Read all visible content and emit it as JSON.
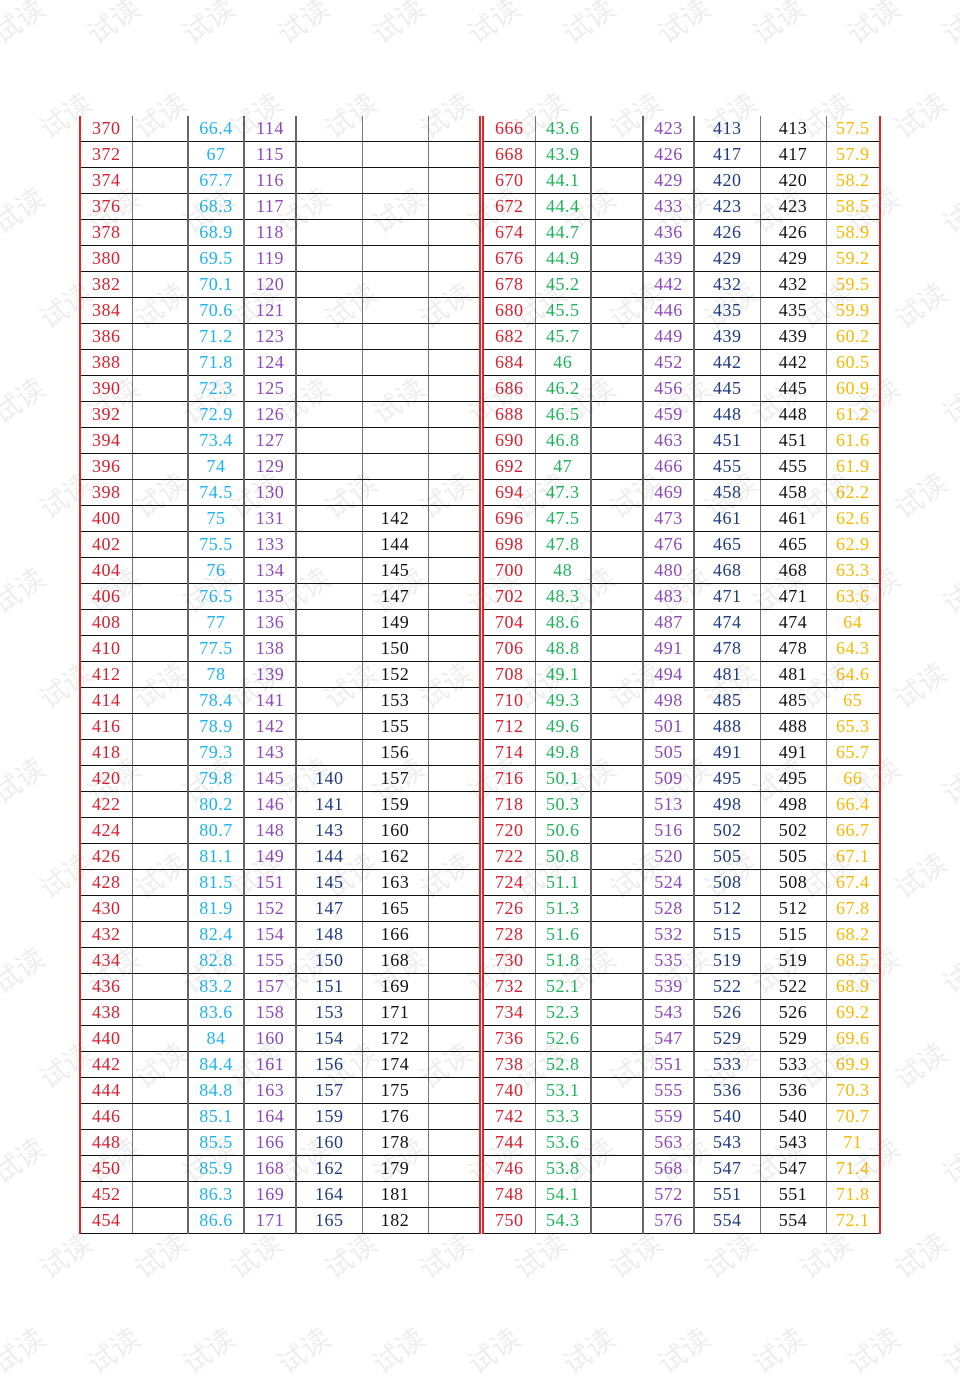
{
  "watermark": "试读",
  "colors": {
    "red": "#d42030",
    "cyan": "#1cb4f0",
    "purple": "#8e48b8",
    "navy": "#1f3b7d",
    "black": "#111111",
    "green": "#1db45a",
    "yellow": "#f7b900"
  },
  "left": {
    "columns": [
      {
        "color": "red",
        "values": [
          "370",
          "372",
          "374",
          "376",
          "378",
          "380",
          "382",
          "384",
          "386",
          "388",
          "390",
          "392",
          "394",
          "396",
          "398",
          "400",
          "402",
          "404",
          "406",
          "408",
          "410",
          "412",
          "414",
          "416",
          "418",
          "420",
          "422",
          "424",
          "426",
          "428",
          "430",
          "432",
          "434",
          "436",
          "438",
          "440",
          "442",
          "444",
          "446",
          "448",
          "450",
          "452",
          "454"
        ]
      },
      {
        "color": "black",
        "values": []
      },
      {
        "color": "cyan",
        "values": [
          "66.4",
          "67",
          "67.7",
          "68.3",
          "68.9",
          "69.5",
          "70.1",
          "70.6",
          "71.2",
          "71.8",
          "72.3",
          "72.9",
          "73.4",
          "74",
          "74.5",
          "75",
          "75.5",
          "76",
          "76.5",
          "77",
          "77.5",
          "78",
          "78.4",
          "78.9",
          "79.3",
          "79.8",
          "80.2",
          "80.7",
          "81.1",
          "81.5",
          "81.9",
          "82.4",
          "82.8",
          "83.2",
          "83.6",
          "84",
          "84.4",
          "84.8",
          "85.1",
          "85.5",
          "85.9",
          "86.3",
          "86.6"
        ]
      },
      {
        "color": "purple",
        "values": [
          "114",
          "115",
          "116",
          "117",
          "118",
          "119",
          "120",
          "121",
          "123",
          "124",
          "125",
          "126",
          "127",
          "129",
          "130",
          "131",
          "133",
          "134",
          "135",
          "136",
          "138",
          "139",
          "141",
          "142",
          "143",
          "145",
          "146",
          "148",
          "149",
          "151",
          "152",
          "154",
          "155",
          "157",
          "158",
          "160",
          "161",
          "163",
          "164",
          "166",
          "168",
          "169",
          "171"
        ]
      },
      {
        "color": "navy",
        "values": [
          "",
          "",
          "",
          "",
          "",
          "",
          "",
          "",
          "",
          "",
          "",
          "",
          "",
          "",
          "",
          "",
          "",
          "",
          "",
          "",
          "",
          "",
          "",
          "",
          "",
          "140",
          "141",
          "143",
          "144",
          "145",
          "147",
          "148",
          "150",
          "151",
          "153",
          "154",
          "156",
          "157",
          "159",
          "160",
          "162",
          "164",
          "165"
        ]
      },
      {
        "color": "black",
        "values": [
          "",
          "",
          "",
          "",
          "",
          "",
          "",
          "",
          "",
          "",
          "",
          "",
          "",
          "",
          "",
          "142",
          "144",
          "145",
          "147",
          "149",
          "150",
          "152",
          "153",
          "155",
          "156",
          "157",
          "159",
          "160",
          "162",
          "163",
          "165",
          "166",
          "168",
          "169",
          "171",
          "172",
          "174",
          "175",
          "176",
          "178",
          "179",
          "181",
          "182"
        ]
      },
      {
        "color": "black",
        "values": []
      }
    ]
  },
  "right": {
    "columns": [
      {
        "color": "red",
        "values": [
          "666",
          "668",
          "670",
          "672",
          "674",
          "676",
          "678",
          "680",
          "682",
          "684",
          "686",
          "688",
          "690",
          "692",
          "694",
          "696",
          "698",
          "700",
          "702",
          "704",
          "706",
          "708",
          "710",
          "712",
          "714",
          "716",
          "718",
          "720",
          "722",
          "724",
          "726",
          "728",
          "730",
          "732",
          "734",
          "736",
          "738",
          "740",
          "742",
          "744",
          "746",
          "748",
          "750"
        ]
      },
      {
        "color": "green",
        "values": [
          "43.6",
          "43.9",
          "44.1",
          "44.4",
          "44.7",
          "44.9",
          "45.2",
          "45.5",
          "45.7",
          "46",
          "46.2",
          "46.5",
          "46.8",
          "47",
          "47.3",
          "47.5",
          "47.8",
          "48",
          "48.3",
          "48.6",
          "48.8",
          "49.1",
          "49.3",
          "49.6",
          "49.8",
          "50.1",
          "50.3",
          "50.6",
          "50.8",
          "51.1",
          "51.3",
          "51.6",
          "51.8",
          "52.1",
          "52.3",
          "52.6",
          "52.8",
          "53.1",
          "53.3",
          "53.6",
          "53.8",
          "54.1",
          "54.3"
        ]
      },
      {
        "color": "black",
        "values": []
      },
      {
        "color": "purple",
        "values": [
          "423",
          "426",
          "429",
          "433",
          "436",
          "439",
          "442",
          "446",
          "449",
          "452",
          "456",
          "459",
          "463",
          "466",
          "469",
          "473",
          "476",
          "480",
          "483",
          "487",
          "491",
          "494",
          "498",
          "501",
          "505",
          "509",
          "513",
          "516",
          "520",
          "524",
          "528",
          "532",
          "535",
          "539",
          "543",
          "547",
          "551",
          "555",
          "559",
          "563",
          "568",
          "572",
          "576"
        ]
      },
      {
        "color": "navy",
        "values": [
          "413",
          "417",
          "420",
          "423",
          "426",
          "429",
          "432",
          "435",
          "439",
          "442",
          "445",
          "448",
          "451",
          "455",
          "458",
          "461",
          "465",
          "468",
          "471",
          "474",
          "478",
          "481",
          "485",
          "488",
          "491",
          "495",
          "498",
          "502",
          "505",
          "508",
          "512",
          "515",
          "519",
          "522",
          "526",
          "529",
          "533",
          "536",
          "540",
          "543",
          "547",
          "551",
          "554"
        ]
      },
      {
        "color": "black",
        "values": [
          "413",
          "417",
          "420",
          "423",
          "426",
          "429",
          "432",
          "435",
          "439",
          "442",
          "445",
          "448",
          "451",
          "455",
          "458",
          "461",
          "465",
          "468",
          "471",
          "474",
          "478",
          "481",
          "485",
          "488",
          "491",
          "495",
          "498",
          "502",
          "505",
          "508",
          "512",
          "515",
          "519",
          "522",
          "526",
          "529",
          "533",
          "536",
          "540",
          "543",
          "547",
          "551",
          "554"
        ]
      },
      {
        "color": "yellow",
        "values": [
          "57.5",
          "57.9",
          "58.2",
          "58.5",
          "58.9",
          "59.2",
          "59.5",
          "59.9",
          "60.2",
          "60.5",
          "60.9",
          "61.2",
          "61.6",
          "61.9",
          "62.2",
          "62.6",
          "62.9",
          "63.3",
          "63.6",
          "64",
          "64.3",
          "64.6",
          "65",
          "65.3",
          "65.7",
          "66",
          "66.4",
          "66.7",
          "67.1",
          "67.4",
          "67.8",
          "68.2",
          "68.5",
          "68.9",
          "69.2",
          "69.6",
          "69.9",
          "70.3",
          "70.7",
          "71",
          "71.4",
          "71.8",
          "72.1"
        ]
      }
    ]
  }
}
